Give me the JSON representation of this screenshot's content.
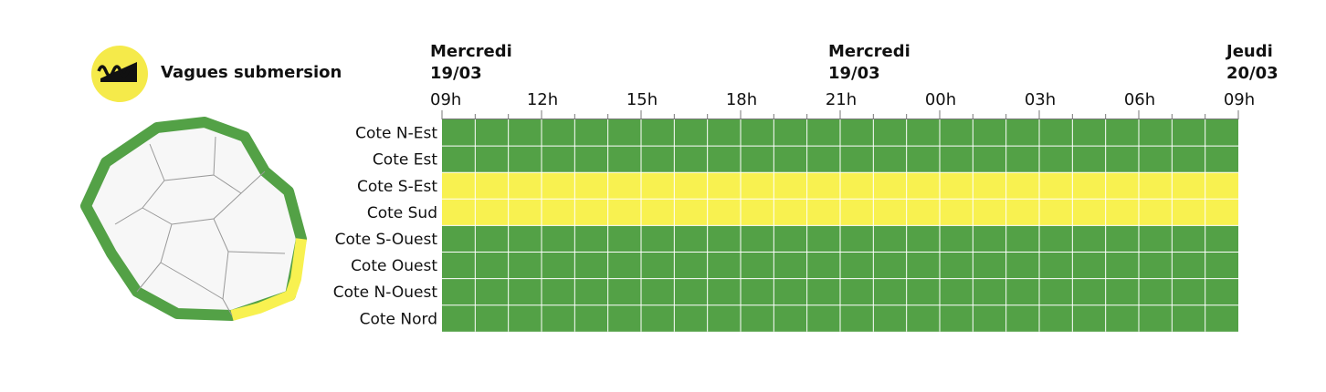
{
  "legend": {
    "label": "Vagues submersion",
    "icon": "wave-submersion-icon",
    "icon_color": "#f5ea4a"
  },
  "colors": {
    "green": "#53a146",
    "yellow": "#f8f150",
    "grid_line": "#ffffff"
  },
  "chart_data": {
    "type": "heatmap",
    "title": "",
    "day_labels": [
      {
        "day": "Mercredi",
        "date": "19/03",
        "hour_index": 0
      },
      {
        "day": "Mercredi",
        "date": "19/03",
        "hour_index": 12
      },
      {
        "day": "Jeudi",
        "date": "20/03",
        "hour_index": 24
      }
    ],
    "hour_ticks": [
      "09h",
      "12h",
      "15h",
      "18h",
      "21h",
      "00h",
      "03h",
      "06h",
      "09h"
    ],
    "tick_step_hours": 3,
    "hours": 24,
    "rows": [
      "Cote N-Est",
      "Cote Est",
      "Cote S-Est",
      "Cote Sud",
      "Cote S-Ouest",
      "Cote Ouest",
      "Cote N-Ouest",
      "Cote Nord"
    ],
    "row_levels": [
      "vert",
      "vert",
      "jaune",
      "jaune",
      "vert",
      "vert",
      "vert",
      "vert"
    ]
  },
  "map": {
    "coast_levels": {
      "north_east": "vert",
      "east": "vert",
      "south_east": "jaune",
      "south": "jaune",
      "south_west": "vert",
      "west": "vert",
      "north_west": "vert",
      "north": "vert"
    }
  }
}
